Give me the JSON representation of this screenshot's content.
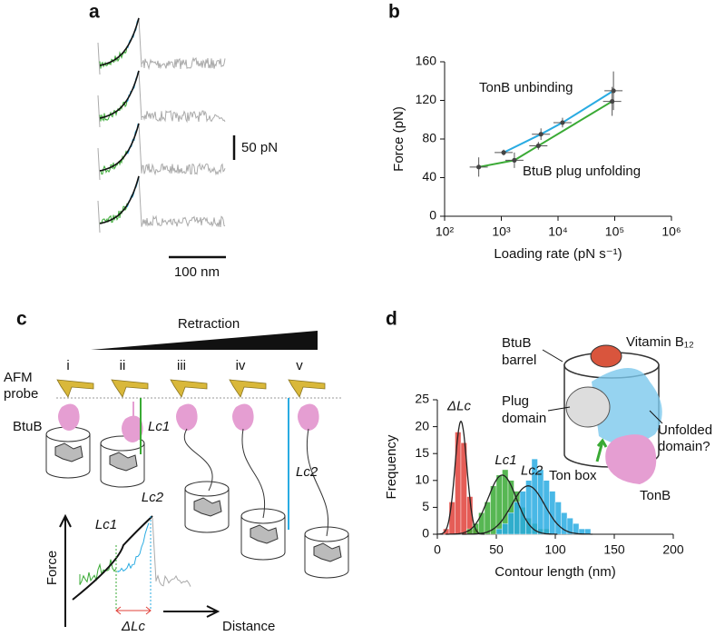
{
  "panel_labels": [
    "a",
    "b",
    "c",
    "d"
  ],
  "panel_a": {
    "force_scale": "50 pN",
    "distance_scale": "100 nm"
  },
  "panel_c": {
    "retraction": "Retraction",
    "stages": [
      "i",
      "ii",
      "iii",
      "iv",
      "v"
    ],
    "afm_probe": [
      "AFM",
      "probe"
    ],
    "btub": "BtuB",
    "lc1": "Lc1",
    "lc2": "Lc2",
    "curve_lc1": "Lc1",
    "curve_lc2": "Lc2",
    "force": "Force",
    "distance": "Distance",
    "delta_lc": "ΔLc"
  },
  "panel_d_diagram": {
    "vitamin": "Vitamin B₁₂",
    "barrel": [
      "BtuB",
      "barrel"
    ],
    "plug": [
      "Plug",
      "domain"
    ],
    "unfolded": [
      "Unfolded",
      "domain?"
    ],
    "ton_box": "Ton box",
    "tonb": "TonB"
  },
  "chart_data": [
    {
      "type": "line",
      "x_label": "Loading rate (pN s⁻¹)",
      "y_label": "Force (pN)",
      "xscale": "log",
      "xlim": [
        100,
        1000000
      ],
      "xticks": [
        {
          "value": 100,
          "label": "10²"
        },
        {
          "value": 1000,
          "label": "10³"
        },
        {
          "value": 10000,
          "label": "10⁴"
        },
        {
          "value": 100000,
          "label": "10⁵"
        },
        {
          "value": 1000000,
          "label": "10⁶"
        }
      ],
      "ylim": [
        0,
        160
      ],
      "yticks": [
        0,
        40,
        80,
        120,
        160
      ],
      "series": [
        {
          "name": "TonB unbinding",
          "color": "#29abe2",
          "x": [
            1100,
            5000,
            12000,
            95000
          ],
          "values": [
            66,
            85,
            97,
            130
          ],
          "errors": [
            3,
            6,
            5,
            20
          ]
        },
        {
          "name": "BtuB plug unfolding",
          "color": "#3aaa35",
          "x": [
            400,
            1700,
            4500,
            90000
          ],
          "values": [
            51,
            58,
            73,
            119
          ],
          "errors": [
            10,
            8,
            4,
            15
          ]
        }
      ]
    },
    {
      "type": "histogram",
      "x_label": "Contour length (nm)",
      "y_label": "Frequency",
      "xlim": [
        0,
        200
      ],
      "xticks": [
        0,
        50,
        100,
        150,
        200
      ],
      "ylim": [
        0,
        25
      ],
      "yticks": [
        0,
        5,
        10,
        15,
        20,
        25
      ],
      "series": [
        {
          "name": "ΔLc",
          "color": "#e0413a",
          "bins": [
            5,
            10,
            15,
            20,
            25,
            30,
            35
          ],
          "values": [
            1,
            6,
            19,
            17,
            7,
            1
          ],
          "fit": {
            "mean": 20,
            "sd": 5,
            "peak": 21
          }
        },
        {
          "name": "Lc1",
          "color": "#3aaa35",
          "bins": [
            25,
            30,
            35,
            40,
            45,
            50,
            55,
            60,
            65,
            70,
            75,
            80,
            85,
            90,
            95
          ],
          "values": [
            1,
            2,
            4,
            6,
            9,
            11,
            12,
            10,
            8,
            5,
            3,
            2,
            1,
            1
          ],
          "fit": {
            "mean": 55,
            "sd": 12,
            "peak": 11
          }
        },
        {
          "name": "Lc2",
          "color": "#29abe2",
          "bins": [
            50,
            55,
            60,
            65,
            70,
            75,
            80,
            85,
            90,
            95,
            100,
            105,
            110,
            115,
            120,
            125,
            130
          ],
          "values": [
            1,
            2,
            4,
            6,
            8,
            10,
            14,
            12,
            10,
            8,
            6,
            4,
            3,
            2,
            1,
            1
          ],
          "fit": {
            "mean": 77,
            "sd": 14,
            "peak": 9
          }
        }
      ]
    }
  ]
}
